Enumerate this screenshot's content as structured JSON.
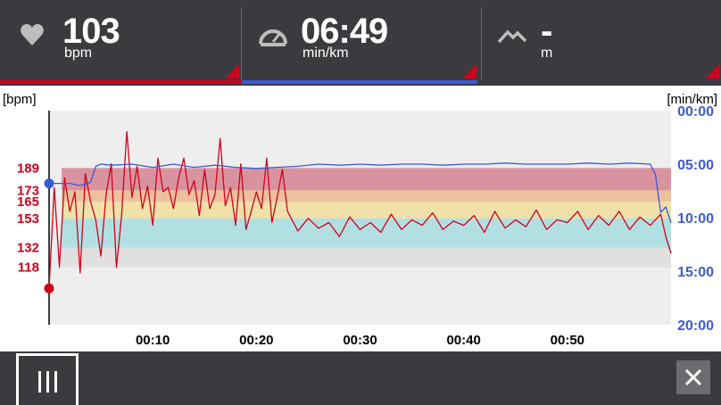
{
  "header": {
    "heart_rate": {
      "value": "103",
      "unit": "bpm",
      "icon": "heart-icon"
    },
    "pace": {
      "value": "06:49",
      "unit": "min/km",
      "icon": "speedometer-icon"
    },
    "elevation": {
      "value": "-",
      "unit": "m",
      "icon": "mountain-icon"
    }
  },
  "colors": {
    "accent_red": "#d0021b",
    "pace_blue": "#3a5bd9",
    "zone_red": "#d9939f",
    "zone_orange": "#efc0a0",
    "zone_yellow": "#f1e1a8",
    "zone_cyan": "#b2dfe2",
    "zone_gray": "#e0e0e0"
  },
  "chart_data": {
    "type": "line",
    "y_left_label": "[bpm]",
    "y_right_label": "[min/km]",
    "left_ticks": [
      "189",
      "173",
      "165",
      "153",
      "132",
      "118"
    ],
    "right_ticks": [
      "00:00",
      "05:00",
      "10:00",
      "15:00",
      "20:00"
    ],
    "x_ticks": [
      "00:10",
      "00:20",
      "00:30",
      "00:40",
      "00:50"
    ],
    "xlim_minutes": [
      0,
      60
    ],
    "left_ylim_bpm": [
      77,
      230
    ],
    "right_ylim_min_per_km": [
      0,
      20
    ],
    "zones_bpm": [
      [
        173,
        189
      ],
      [
        165,
        173
      ],
      [
        153,
        165
      ],
      [
        132,
        153
      ],
      [
        118,
        132
      ]
    ],
    "series": [
      {
        "color": "#d0021b",
        "x": [
          0,
          0.5,
          1,
          1.5,
          2,
          2.5,
          3,
          3.5,
          4,
          4.5,
          5,
          5.5,
          6,
          6.5,
          7,
          7.5,
          8,
          8.5,
          9,
          9.5,
          10,
          10.5,
          11,
          11.5,
          12,
          12.5,
          13,
          13.5,
          14,
          14.5,
          15,
          15.5,
          16,
          16.5,
          17,
          17.5,
          18,
          18.5,
          19,
          19.5,
          20,
          20.5,
          21,
          21.5,
          22,
          22.5,
          23,
          24,
          25,
          26,
          27,
          28,
          29,
          30,
          31,
          32,
          33,
          34,
          35,
          36,
          37,
          38,
          39,
          40,
          41,
          42,
          43,
          44,
          45,
          46,
          47,
          48,
          49,
          50,
          51,
          52,
          53,
          54,
          55,
          56,
          57,
          58,
          59,
          59.5,
          60
        ],
        "y": [
          103,
          175,
          118,
          182,
          158,
          172,
          114,
          185,
          165,
          152,
          126,
          170,
          192,
          118,
          155,
          215,
          168,
          190,
          160,
          176,
          148,
          196,
          172,
          175,
          160,
          182,
          196,
          170,
          180,
          155,
          188,
          160,
          170,
          210,
          162,
          175,
          148,
          192,
          145,
          158,
          172,
          160,
          196,
          150,
          168,
          188,
          158,
          144,
          153,
          146,
          150,
          140,
          154,
          145,
          150,
          143,
          156,
          145,
          152,
          148,
          157,
          145,
          151,
          148,
          155,
          143,
          158,
          146,
          152,
          147,
          159,
          145,
          152,
          150,
          158,
          145,
          155,
          148,
          158,
          145,
          154,
          148,
          156,
          140,
          128
        ]
      },
      {
        "color": "#3a5bd9",
        "x": [
          0,
          2,
          3,
          4,
          4.5,
          5,
          6,
          8,
          10,
          12,
          14,
          16,
          18,
          20,
          22,
          24,
          26,
          28,
          30,
          32,
          34,
          36,
          38,
          40,
          42,
          44,
          46,
          48,
          50,
          52,
          54,
          56,
          58,
          58.5,
          59,
          59.5,
          60
        ],
        "y": [
          6.8,
          6.8,
          7.0,
          6.7,
          5.2,
          5.0,
          5.1,
          5.0,
          5.3,
          5.0,
          5.3,
          5.1,
          5.3,
          5.4,
          5.3,
          5.2,
          5.0,
          5.1,
          5.0,
          5.1,
          5.0,
          5.0,
          5.1,
          5.0,
          5.0,
          4.9,
          5.0,
          5.0,
          5.0,
          4.9,
          5.0,
          4.9,
          5.0,
          6.0,
          9.5,
          9.0,
          10.5
        ]
      }
    ]
  }
}
